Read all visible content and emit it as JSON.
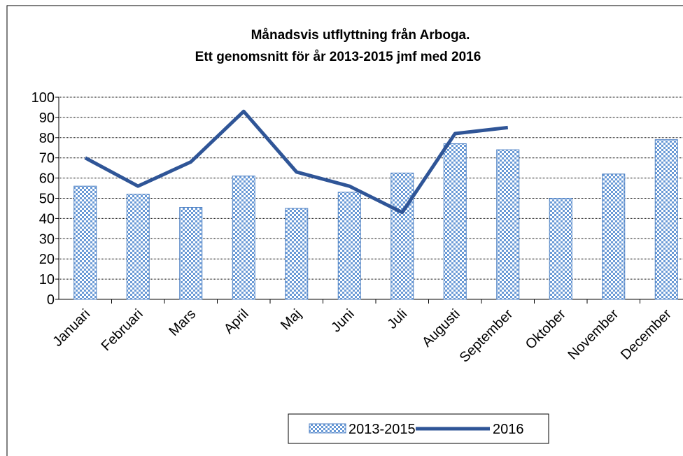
{
  "chart_data": {
    "type": "bar",
    "title": [
      "Månadsvis utflyttning från Arboga.",
      "Ett genomsnitt för år 2013-2015 jmf med 2016"
    ],
    "categories": [
      "Januari",
      "Februari",
      "Mars",
      "April",
      "Maj",
      "Juni",
      "Juli",
      "Augusti",
      "September",
      "Oktober",
      "November",
      "December"
    ],
    "series": [
      {
        "name": "2013-2015",
        "type": "bar",
        "color": "#4f81c4",
        "values": [
          56,
          52,
          45.5,
          61,
          45,
          53,
          62.5,
          77,
          74,
          50,
          62,
          79
        ]
      },
      {
        "name": "2016",
        "type": "line",
        "color": "#2f5597",
        "values": [
          70,
          56,
          68,
          93,
          63,
          56,
          43,
          82,
          85,
          null,
          null,
          null
        ]
      }
    ],
    "ylim": [
      0,
      100
    ],
    "yticks": [
      0,
      10,
      20,
      30,
      40,
      50,
      60,
      70,
      80,
      90,
      100
    ],
    "grid": true,
    "legend": "bottom"
  }
}
